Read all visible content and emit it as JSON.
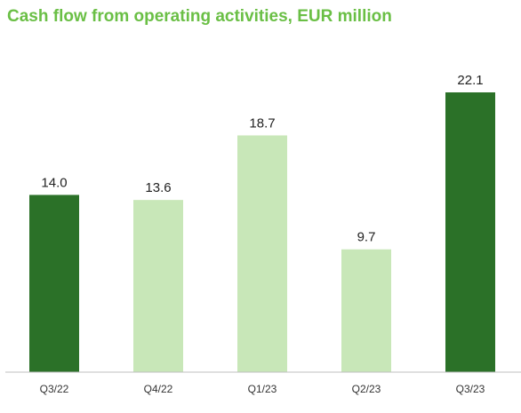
{
  "chart_data": {
    "type": "bar",
    "title": "Cash flow from operating activities, EUR million",
    "categories": [
      "Q3/22",
      "Q4/22",
      "Q1/23",
      "Q2/23",
      "Q3/23"
    ],
    "values": [
      14.0,
      13.6,
      18.7,
      9.7,
      22.1
    ],
    "labels": [
      "14.0",
      "13.6",
      "18.7",
      "9.7",
      "22.1"
    ],
    "ylim": [
      0,
      22.1
    ],
    "grid": false,
    "colors": {
      "title": "#6abf45",
      "highlight": "#2b7128",
      "normal": "#c8e7b8",
      "axis": "#bfbfbf"
    },
    "highlighted": [
      true,
      false,
      false,
      false,
      true
    ]
  }
}
